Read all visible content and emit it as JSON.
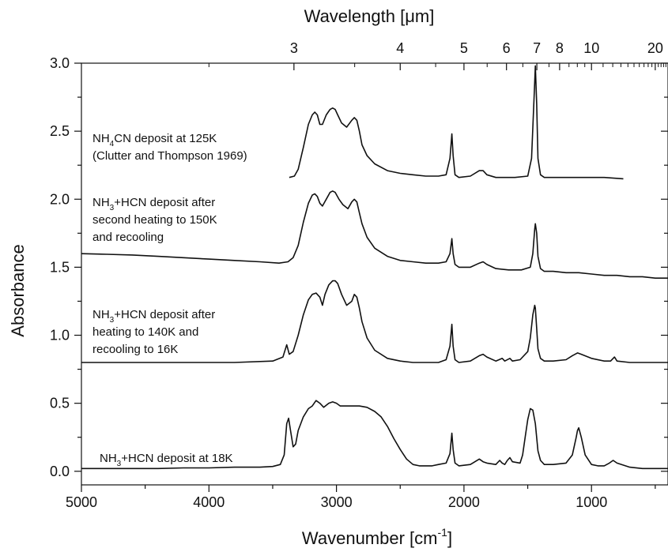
{
  "chart_data": {
    "type": "line",
    "title": "",
    "xlabel": "Wavenumber [cm",
    "xlabel_sup": "-1",
    "xlabel_end": "]",
    "ylabel": "Absorbance",
    "top_axis_label": "Wavelength [",
    "top_axis_label_mu": "μ",
    "top_axis_label_end": "m]",
    "xlim": [
      5000,
      400
    ],
    "x_reversed": true,
    "ylim": [
      -0.1,
      3.0
    ],
    "x_ticks": [
      5000,
      4000,
      3000,
      2000,
      1000
    ],
    "x_tick_labels": [
      "5000",
      "4000",
      "3000",
      "2000",
      "1000"
    ],
    "y_ticks": [
      0.0,
      0.5,
      1.0,
      1.5,
      2.0,
      2.5,
      3.0
    ],
    "y_tick_labels": [
      "0.0",
      "0.5",
      "1.0",
      "1.5",
      "2.0",
      "2.5",
      "3.0"
    ],
    "top_ticks_um": [
      3,
      4,
      5,
      6,
      7,
      8,
      10,
      20
    ],
    "top_tick_labels": [
      "3",
      "4",
      "5",
      "6",
      "7",
      "8",
      "10",
      "20"
    ],
    "grid": false,
    "legend": "none",
    "series_annotations": [
      {
        "lines": [
          [
            "NH",
            "4",
            "CN deposit at 125K"
          ],
          [
            "(Clutter and Thompson 1969)",
            "",
            ""
          ]
        ]
      },
      {
        "lines": [
          [
            "NH",
            "3",
            "+HCN deposit after"
          ],
          [
            "second heating to 150K",
            "",
            ""
          ],
          [
            "and recooling",
            "",
            ""
          ]
        ]
      },
      {
        "lines": [
          [
            "NH",
            "3",
            "+HCN deposit after"
          ],
          [
            "heating to 140K and",
            "",
            ""
          ],
          [
            "recooling to 16K",
            "",
            ""
          ]
        ]
      },
      {
        "lines": [
          [
            "NH",
            "3",
            "+HCN deposit at 18K"
          ]
        ]
      }
    ],
    "series": [
      {
        "x": [
          3370,
          3330,
          3300,
          3260,
          3220,
          3190,
          3170,
          3150,
          3130,
          3110,
          3080,
          3050,
          3030,
          3010,
          2990,
          2960,
          2920,
          2880,
          2860,
          2840,
          2820,
          2800,
          2760,
          2700,
          2600,
          2500,
          2400,
          2300,
          2200,
          2140,
          2110,
          2095,
          2085,
          2070,
          2040,
          1950,
          1880,
          1850,
          1820,
          1750,
          1600,
          1500,
          1470,
          1450,
          1440,
          1430,
          1420,
          1400,
          1370,
          1300,
          1100,
          900,
          750
        ],
        "y": [
          2.16,
          2.17,
          2.22,
          2.38,
          2.55,
          2.62,
          2.64,
          2.62,
          2.55,
          2.55,
          2.62,
          2.66,
          2.67,
          2.66,
          2.62,
          2.56,
          2.53,
          2.58,
          2.6,
          2.58,
          2.5,
          2.4,
          2.32,
          2.26,
          2.21,
          2.19,
          2.18,
          2.17,
          2.17,
          2.18,
          2.3,
          2.48,
          2.32,
          2.18,
          2.16,
          2.17,
          2.21,
          2.21,
          2.18,
          2.16,
          2.16,
          2.17,
          2.3,
          2.75,
          2.98,
          2.7,
          2.3,
          2.18,
          2.16,
          2.16,
          2.16,
          2.16,
          2.15
        ]
      },
      {
        "x": [
          5000,
          4800,
          4600,
          4400,
          4200,
          4000,
          3800,
          3600,
          3450,
          3380,
          3340,
          3300,
          3260,
          3220,
          3190,
          3170,
          3150,
          3130,
          3110,
          3080,
          3050,
          3030,
          3010,
          2980,
          2950,
          2910,
          2880,
          2860,
          2840,
          2820,
          2800,
          2760,
          2700,
          2600,
          2500,
          2400,
          2300,
          2200,
          2140,
          2110,
          2095,
          2085,
          2070,
          2040,
          1950,
          1880,
          1850,
          1820,
          1750,
          1650,
          1550,
          1480,
          1460,
          1445,
          1440,
          1430,
          1420,
          1400,
          1370,
          1300,
          1200,
          1100,
          1000,
          900,
          800,
          700,
          600,
          500,
          400
        ],
        "y": [
          1.6,
          1.595,
          1.59,
          1.58,
          1.57,
          1.56,
          1.55,
          1.54,
          1.53,
          1.54,
          1.57,
          1.66,
          1.83,
          1.97,
          2.03,
          2.04,
          2.02,
          1.97,
          1.95,
          2.0,
          2.05,
          2.06,
          2.05,
          2.0,
          1.96,
          1.93,
          1.98,
          2.0,
          1.98,
          1.9,
          1.82,
          1.72,
          1.64,
          1.58,
          1.55,
          1.54,
          1.53,
          1.53,
          1.54,
          1.6,
          1.71,
          1.6,
          1.52,
          1.5,
          1.5,
          1.53,
          1.54,
          1.52,
          1.49,
          1.48,
          1.48,
          1.5,
          1.6,
          1.78,
          1.82,
          1.75,
          1.58,
          1.49,
          1.47,
          1.47,
          1.46,
          1.46,
          1.45,
          1.44,
          1.44,
          1.43,
          1.43,
          1.42,
          1.42
        ]
      },
      {
        "x": [
          5000,
          4600,
          4200,
          3800,
          3500,
          3420,
          3390,
          3370,
          3340,
          3300,
          3260,
          3220,
          3190,
          3160,
          3130,
          3110,
          3090,
          3060,
          3030,
          3010,
          2990,
          2960,
          2920,
          2880,
          2860,
          2840,
          2820,
          2800,
          2760,
          2700,
          2600,
          2500,
          2400,
          2300,
          2200,
          2140,
          2110,
          2095,
          2085,
          2070,
          2040,
          1950,
          1880,
          1850,
          1820,
          1750,
          1700,
          1680,
          1640,
          1620,
          1560,
          1500,
          1480,
          1460,
          1445,
          1440,
          1430,
          1420,
          1400,
          1370,
          1300,
          1200,
          1150,
          1110,
          1080,
          1000,
          900,
          850,
          820,
          800,
          700,
          600,
          500,
          400
        ],
        "y": [
          0.8,
          0.8,
          0.8,
          0.8,
          0.81,
          0.84,
          0.93,
          0.86,
          0.88,
          1.0,
          1.15,
          1.26,
          1.3,
          1.31,
          1.28,
          1.22,
          1.3,
          1.37,
          1.4,
          1.4,
          1.38,
          1.3,
          1.22,
          1.25,
          1.3,
          1.28,
          1.2,
          1.1,
          0.98,
          0.89,
          0.83,
          0.81,
          0.8,
          0.8,
          0.8,
          0.82,
          0.92,
          1.08,
          0.92,
          0.82,
          0.8,
          0.81,
          0.85,
          0.86,
          0.84,
          0.81,
          0.83,
          0.81,
          0.83,
          0.81,
          0.82,
          0.88,
          0.98,
          1.15,
          1.22,
          1.2,
          1.05,
          0.9,
          0.83,
          0.81,
          0.81,
          0.82,
          0.85,
          0.87,
          0.86,
          0.83,
          0.81,
          0.81,
          0.84,
          0.81,
          0.8,
          0.8,
          0.8,
          0.8
        ]
      },
      {
        "x": [
          5000,
          4800,
          4600,
          4400,
          4200,
          4000,
          3800,
          3600,
          3500,
          3440,
          3410,
          3390,
          3375,
          3360,
          3340,
          3320,
          3300,
          3260,
          3220,
          3190,
          3160,
          3130,
          3100,
          3060,
          3030,
          3000,
          2970,
          2930,
          2880,
          2820,
          2760,
          2700,
          2650,
          2600,
          2550,
          2500,
          2450,
          2400,
          2350,
          2300,
          2250,
          2200,
          2140,
          2110,
          2095,
          2085,
          2070,
          2040,
          1950,
          1880,
          1850,
          1820,
          1750,
          1720,
          1700,
          1680,
          1660,
          1640,
          1620,
          1560,
          1540,
          1520,
          1500,
          1480,
          1460,
          1440,
          1420,
          1400,
          1370,
          1300,
          1200,
          1150,
          1120,
          1110,
          1100,
          1080,
          1050,
          1000,
          950,
          900,
          860,
          830,
          800,
          700,
          600,
          500,
          400
        ],
        "y": [
          0.02,
          0.02,
          0.02,
          0.02,
          0.025,
          0.025,
          0.03,
          0.03,
          0.035,
          0.05,
          0.12,
          0.35,
          0.39,
          0.3,
          0.18,
          0.2,
          0.3,
          0.4,
          0.46,
          0.48,
          0.52,
          0.5,
          0.47,
          0.5,
          0.51,
          0.5,
          0.48,
          0.48,
          0.48,
          0.48,
          0.47,
          0.44,
          0.4,
          0.33,
          0.24,
          0.16,
          0.09,
          0.05,
          0.04,
          0.04,
          0.04,
          0.05,
          0.06,
          0.13,
          0.28,
          0.16,
          0.06,
          0.04,
          0.05,
          0.09,
          0.07,
          0.06,
          0.05,
          0.08,
          0.06,
          0.05,
          0.08,
          0.1,
          0.07,
          0.06,
          0.12,
          0.25,
          0.38,
          0.46,
          0.45,
          0.35,
          0.15,
          0.08,
          0.05,
          0.05,
          0.06,
          0.12,
          0.25,
          0.3,
          0.32,
          0.25,
          0.12,
          0.05,
          0.04,
          0.04,
          0.06,
          0.08,
          0.06,
          0.03,
          0.02,
          0.02,
          0.02
        ]
      }
    ]
  }
}
